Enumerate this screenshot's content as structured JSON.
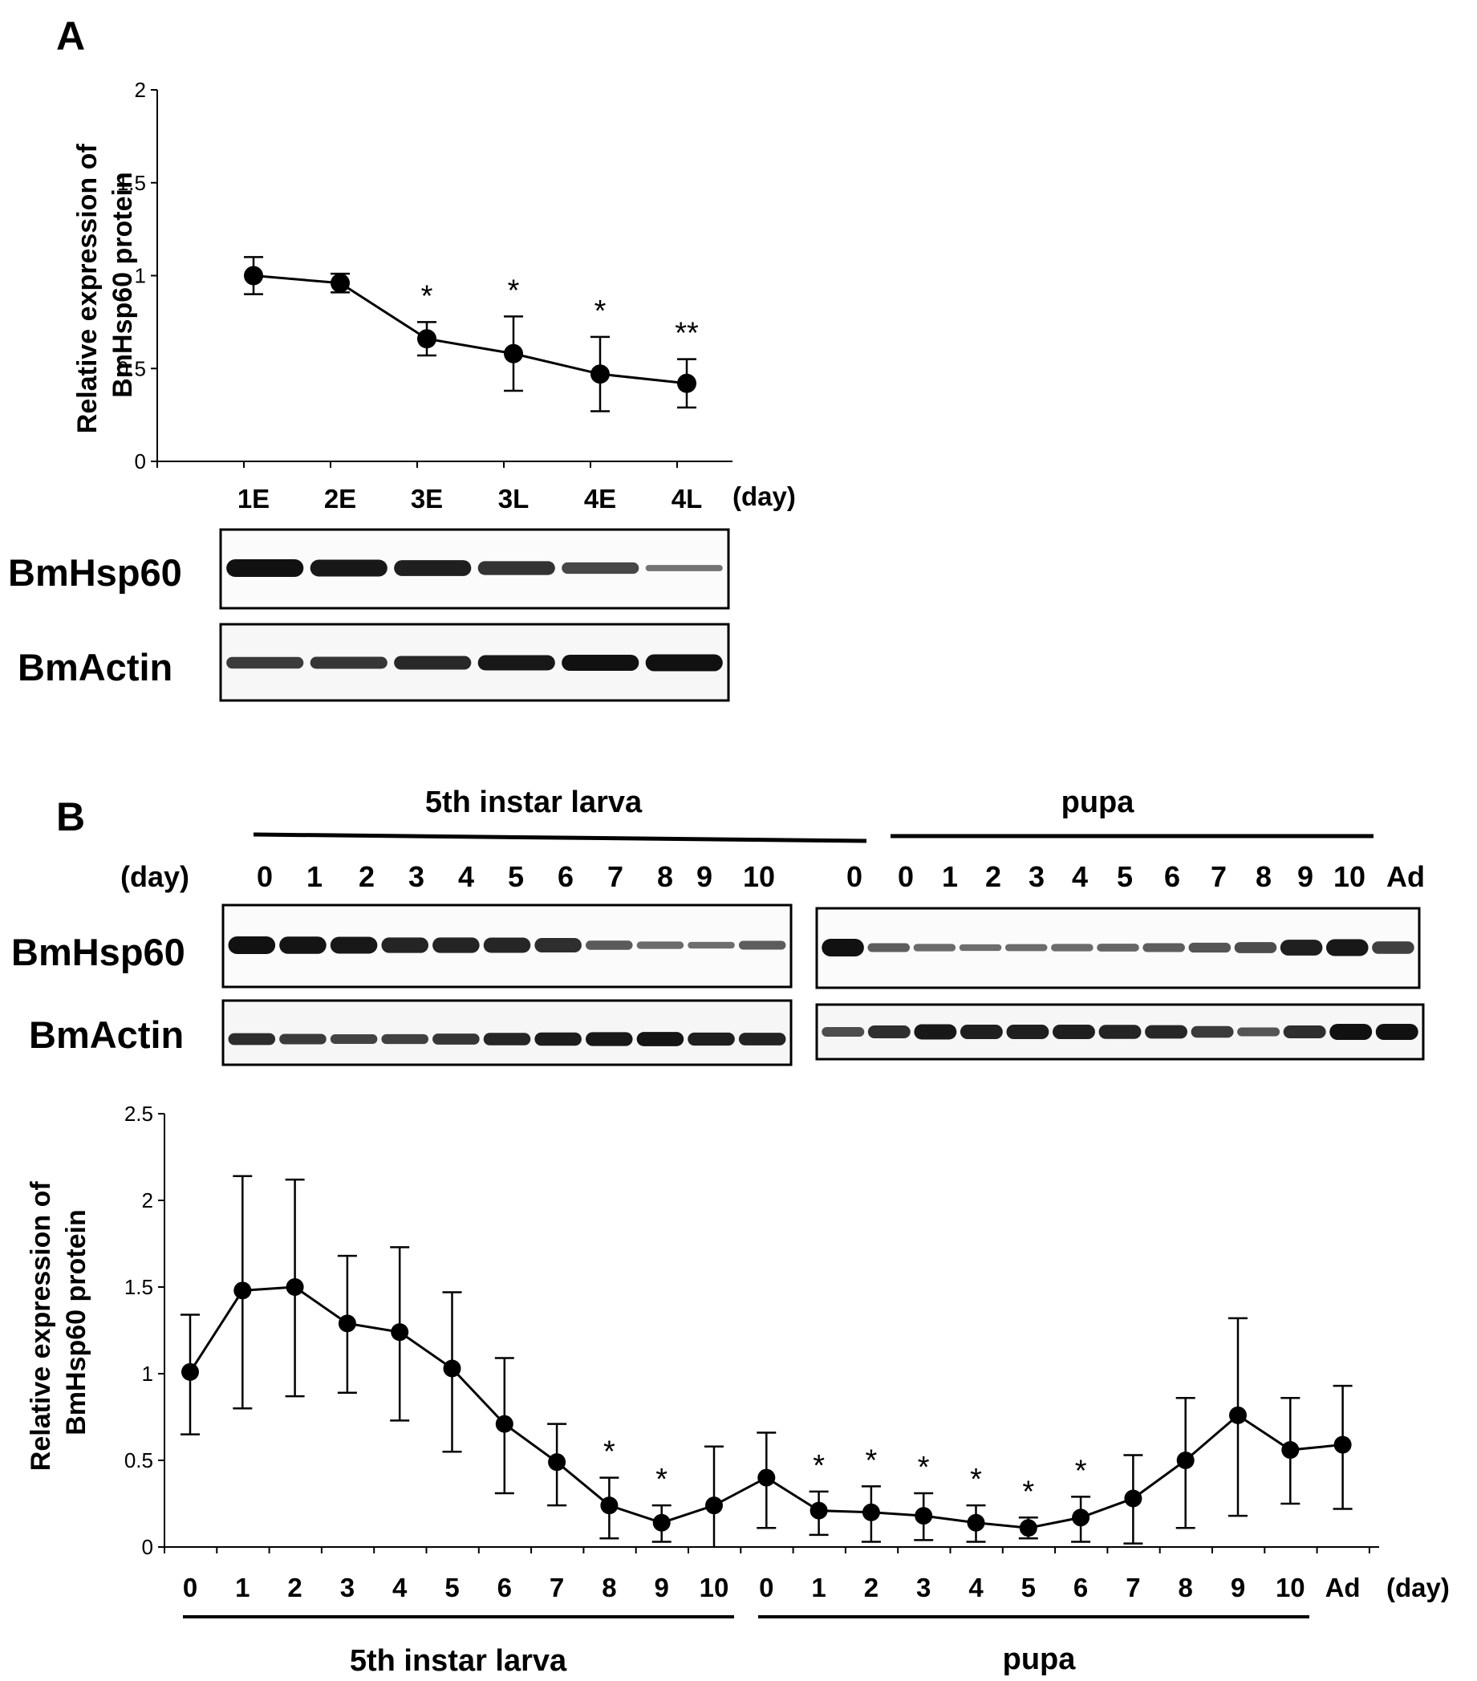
{
  "panel_labels": [
    "A",
    "B"
  ],
  "blot_labels": {
    "hsp": "BmHsp60",
    "actin": "BmActin"
  },
  "day_label": "(day)",
  "group_labels": {
    "larva": "5th instar larva",
    "pupa": "pupa"
  },
  "blot_lanes_B": {
    "larva": [
      "0",
      "1",
      "2",
      "3",
      "4",
      "5",
      "6",
      "7",
      "8",
      "9",
      "10"
    ],
    "pupa": [
      "0",
      "0",
      "1",
      "2",
      "3",
      "4",
      "5",
      "6",
      "7",
      "8",
      "9",
      "10",
      "Ad"
    ]
  },
  "chart_data": [
    {
      "type": "line",
      "panel": "A",
      "title": "",
      "xlabel": "(day)",
      "ylabel": "Relative expression of\nBmHsp60 protein",
      "ylim": [
        0,
        2
      ],
      "yticks": [
        "0",
        "0.5",
        "1",
        "1.5",
        "2"
      ],
      "categories": [
        "1E",
        "2E",
        "3E",
        "3L",
        "4E",
        "4L"
      ],
      "series": [
        {
          "name": "BmHsp60",
          "values": [
            1.0,
            0.96,
            0.66,
            0.58,
            0.47,
            0.42
          ],
          "error_upper": [
            0.1,
            0.05,
            0.09,
            0.2,
            0.2,
            0.13
          ],
          "error_lower": [
            0.1,
            0.05,
            0.09,
            0.2,
            0.2,
            0.13
          ]
        }
      ],
      "annotations": [
        "",
        "",
        "*",
        "*",
        "*",
        "**"
      ]
    },
    {
      "type": "line",
      "panel": "B",
      "title": "",
      "xlabel": "(day)",
      "ylabel": "Relative expression of\nBmHsp60 protein",
      "ylim": [
        0,
        2.5
      ],
      "yticks": [
        "0",
        "0.5",
        "1",
        "1.5",
        "2",
        "2.5"
      ],
      "categories": [
        "0",
        "1",
        "2",
        "3",
        "4",
        "5",
        "6",
        "7",
        "8",
        "9",
        "10",
        "0",
        "1",
        "2",
        "3",
        "4",
        "5",
        "6",
        "7",
        "8",
        "9",
        "10",
        "Ad"
      ],
      "groups": [
        {
          "label": "5th instar larva",
          "from": 0,
          "to": 10
        },
        {
          "label": "pupa",
          "from": 11,
          "to": 21
        }
      ],
      "series": [
        {
          "name": "BmHsp60",
          "values": [
            1.01,
            1.48,
            1.5,
            1.29,
            1.24,
            1.03,
            0.71,
            0.49,
            0.24,
            0.14,
            0.24,
            0.4,
            0.21,
            0.2,
            0.18,
            0.14,
            0.11,
            0.17,
            0.28,
            0.5,
            0.76,
            0.56,
            0.59
          ],
          "error_upper": [
            0.33,
            0.66,
            0.62,
            0.39,
            0.49,
            0.44,
            0.38,
            0.22,
            0.16,
            0.1,
            0.34,
            0.26,
            0.11,
            0.15,
            0.13,
            0.1,
            0.06,
            0.12,
            0.25,
            0.36,
            0.56,
            0.3,
            0.34
          ],
          "error_lower": [
            0.36,
            0.68,
            0.63,
            0.4,
            0.51,
            0.48,
            0.4,
            0.25,
            0.19,
            0.11,
            0.25,
            0.29,
            0.14,
            0.17,
            0.14,
            0.11,
            0.06,
            0.14,
            0.26,
            0.39,
            0.58,
            0.31,
            0.37
          ]
        }
      ],
      "annotations": [
        "",
        "",
        "",
        "",
        "",
        "",
        "",
        "",
        "*",
        "*",
        "",
        "",
        "*",
        "*",
        "*",
        "*",
        "*",
        "*",
        "",
        "",
        "",
        "",
        ""
      ]
    }
  ],
  "blot_bands": {
    "A_hsp": [
      1.0,
      0.95,
      0.9,
      0.78,
      0.65,
      0.35
    ],
    "A_actin": [
      0.72,
      0.75,
      0.85,
      0.95,
      1.0,
      1.05
    ],
    "B_larva_hsp": [
      1.0,
      0.98,
      0.95,
      0.88,
      0.88,
      0.86,
      0.82,
      0.52,
      0.42,
      0.38,
      0.5
    ],
    "B_larva_actin": [
      0.82,
      0.72,
      0.66,
      0.68,
      0.76,
      0.86,
      0.92,
      0.96,
      0.98,
      0.9,
      0.88
    ],
    "B_pupa_hsp": [
      1.0,
      0.5,
      0.42,
      0.38,
      0.4,
      0.42,
      0.44,
      0.5,
      0.56,
      0.62,
      0.9,
      0.95,
      0.7
    ],
    "B_pupa_actin": [
      0.6,
      0.8,
      0.95,
      0.9,
      0.9,
      0.9,
      0.88,
      0.84,
      0.72,
      0.55,
      0.8,
      1.0,
      1.0
    ]
  }
}
